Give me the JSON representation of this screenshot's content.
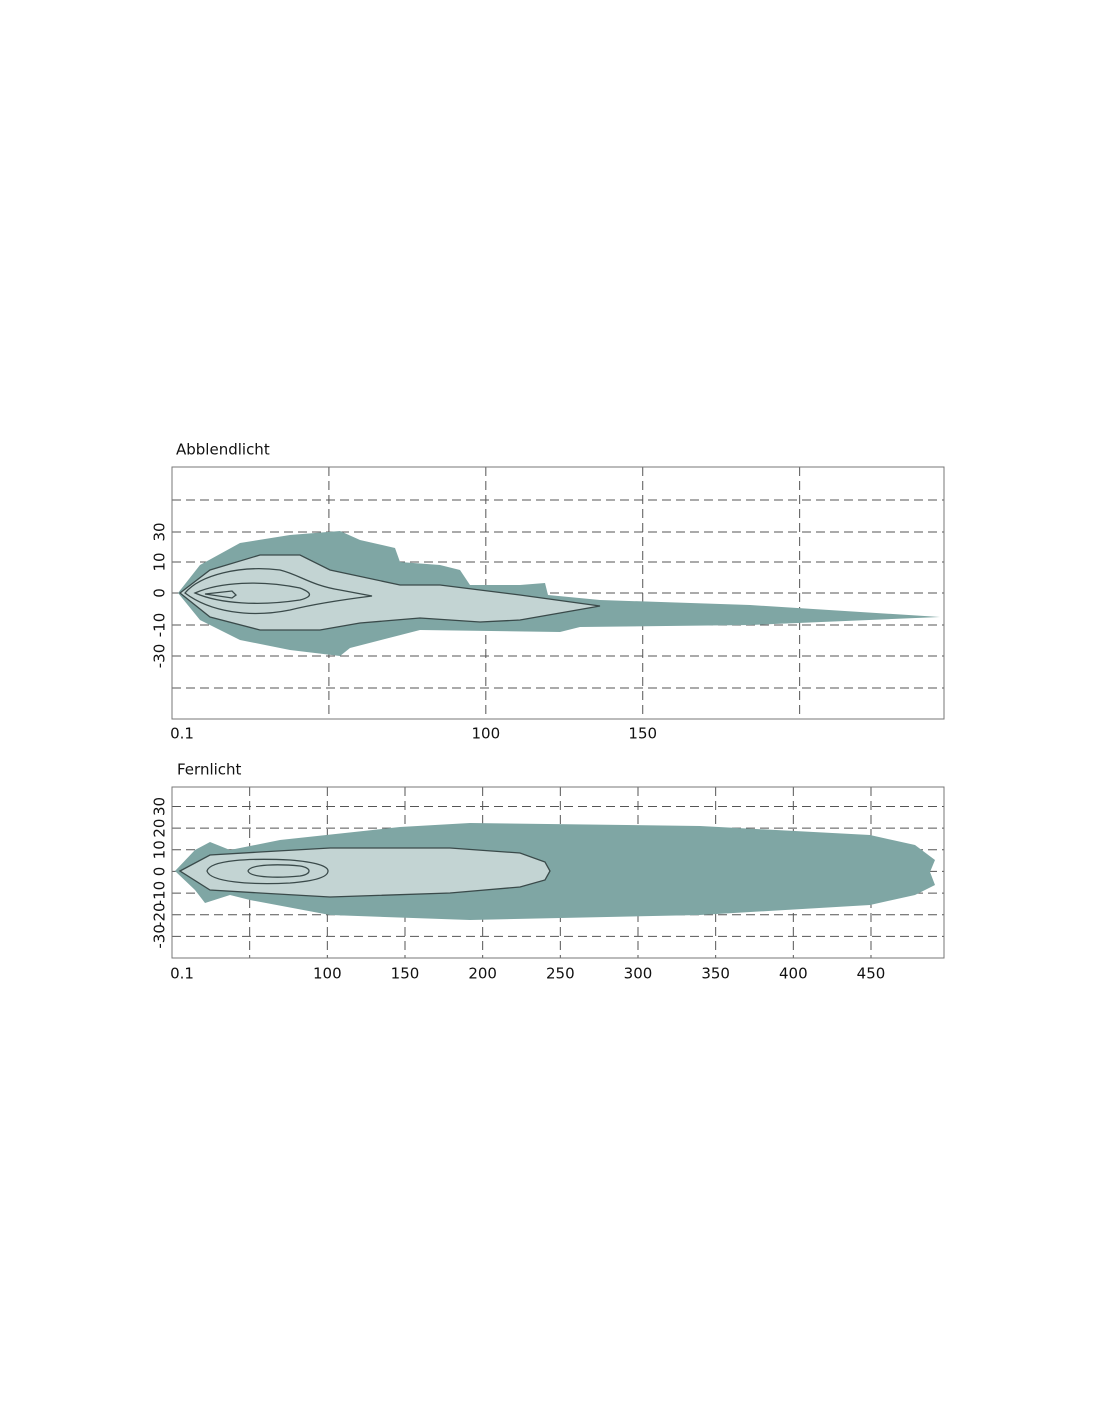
{
  "chart_data": [
    {
      "type": "area",
      "title": "Abblendlicht",
      "xlim": [
        0,
        246
      ],
      "xticks": [
        0.1,
        100,
        150
      ],
      "xgrid": [
        50,
        100,
        150,
        200
      ],
      "yticks": [
        "30",
        "10",
        "0",
        "-10",
        "-30"
      ],
      "grid": true,
      "color": "#7fa6a4",
      "core_color": "#c3d4d3"
    },
    {
      "type": "area",
      "title": "Fernlicht",
      "xlim": [
        0,
        497
      ],
      "xticks": [
        0.1,
        100,
        150,
        200,
        250,
        300,
        350,
        400,
        450
      ],
      "xgrid": [
        50,
        100,
        150,
        200,
        250,
        300,
        350,
        400,
        450
      ],
      "ylim": [
        -40,
        39
      ],
      "yticks": [
        -30,
        -20,
        -10,
        0,
        10,
        20,
        30
      ],
      "grid": true,
      "color": "#7fa6a4",
      "core_color": "#c3d4d3"
    }
  ]
}
